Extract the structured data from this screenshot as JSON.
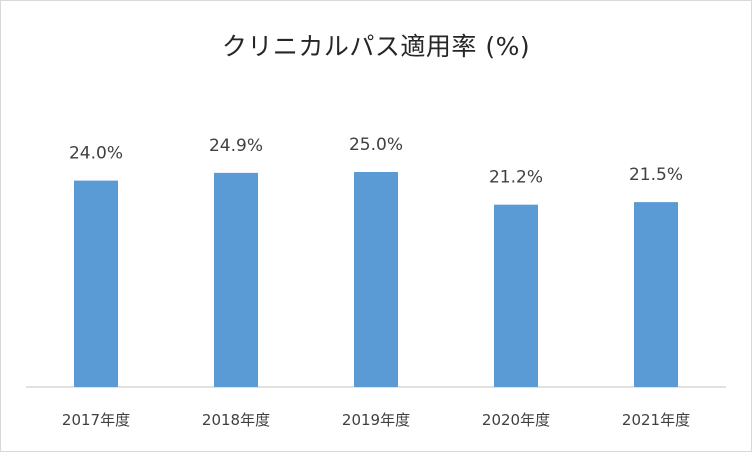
{
  "chart_data": {
    "type": "bar",
    "title": "クリニカルパス適用率 (%)",
    "categories": [
      "2017年度",
      "2018年度",
      "2019年度",
      "2020年度",
      "2021年度"
    ],
    "values": [
      24.0,
      24.9,
      25.0,
      21.2,
      21.5
    ],
    "data_labels": [
      "24.0%",
      "24.9%",
      "25.0%",
      "21.2%",
      "21.5%"
    ],
    "xlabel": "",
    "ylabel": "",
    "ylim": [
      0,
      40
    ],
    "grid": false,
    "legend": "none",
    "bar_color": "#5b9bd5"
  }
}
